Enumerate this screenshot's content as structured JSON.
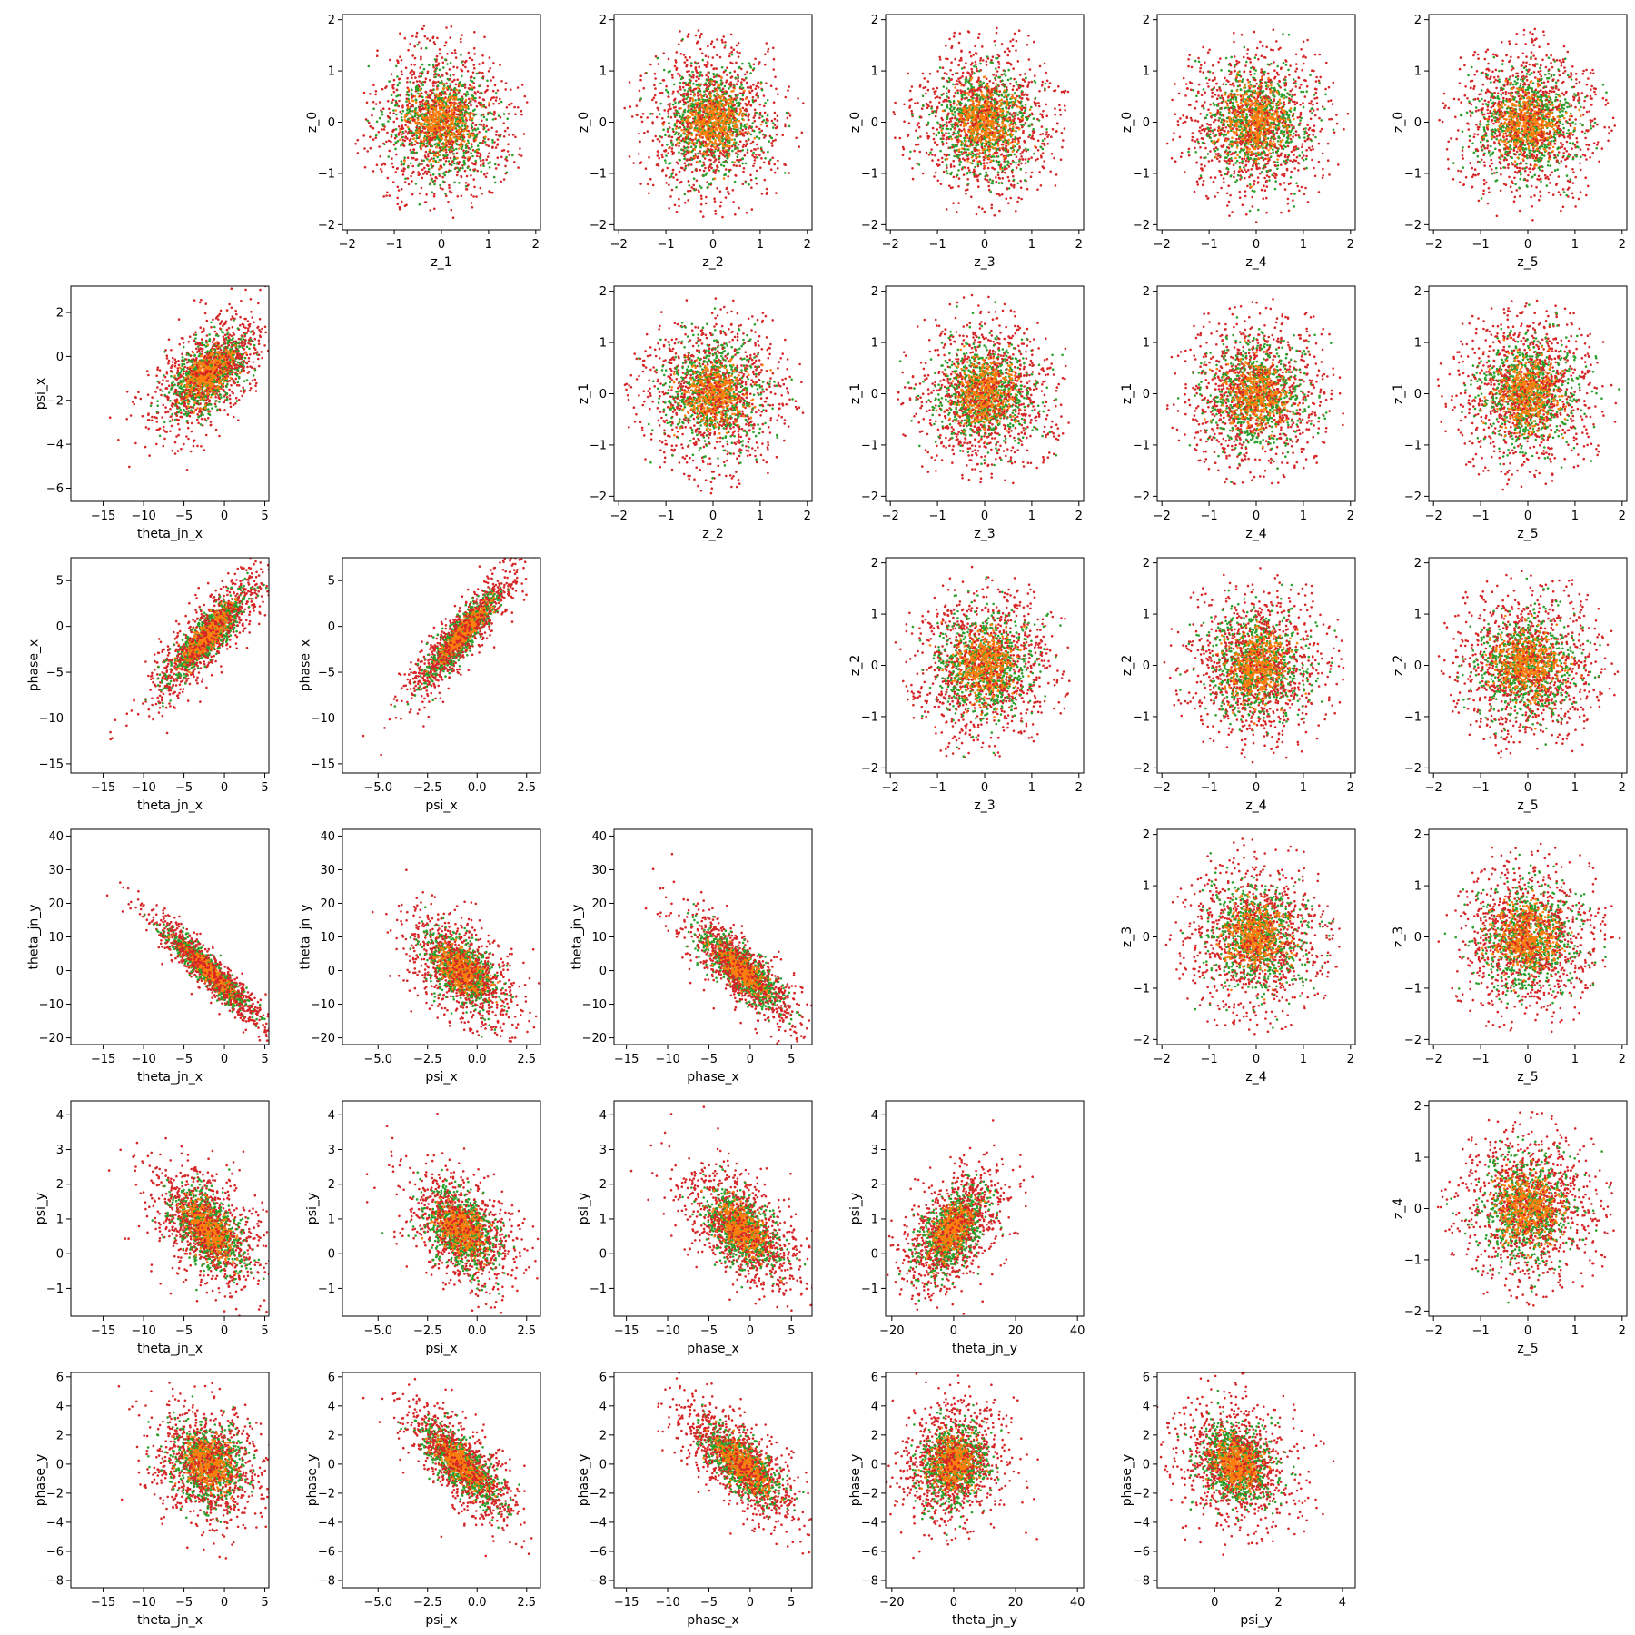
{
  "figure": {
    "background": "#ffffff",
    "colors": {
      "red": "#d62728",
      "green": "#2ca02c",
      "orange": "#ff7f0e"
    }
  },
  "chart_data": [
    {
      "type": "scatter",
      "row": 0,
      "col": 1,
      "xlabel": "z_1",
      "ylabel": "z_0",
      "xlim": [
        -2.1,
        2.1
      ],
      "ylim": [
        -2.1,
        2.1
      ],
      "xticks": [
        -2,
        -1,
        0,
        1,
        2
      ],
      "yticks": [
        -2,
        -1,
        0,
        1,
        2
      ],
      "dist": "iso",
      "params": {
        "sx": 0.85,
        "sy": 0.85
      }
    },
    {
      "type": "scatter",
      "row": 0,
      "col": 2,
      "xlabel": "z_2",
      "ylabel": "z_0",
      "xlim": [
        -2.1,
        2.1
      ],
      "ylim": [
        -2.1,
        2.1
      ],
      "xticks": [
        -2,
        -1,
        0,
        1,
        2
      ],
      "yticks": [
        -2,
        -1,
        0,
        1,
        2
      ],
      "dist": "iso",
      "params": {
        "sx": 0.85,
        "sy": 0.85
      }
    },
    {
      "type": "scatter",
      "row": 0,
      "col": 3,
      "xlabel": "z_3",
      "ylabel": "z_0",
      "xlim": [
        -2.1,
        2.1
      ],
      "ylim": [
        -2.1,
        2.1
      ],
      "xticks": [
        -2,
        -1,
        0,
        1,
        2
      ],
      "yticks": [
        -2,
        -1,
        0,
        1,
        2
      ],
      "dist": "iso",
      "params": {
        "sx": 0.85,
        "sy": 0.85
      }
    },
    {
      "type": "scatter",
      "row": 0,
      "col": 4,
      "xlabel": "z_4",
      "ylabel": "z_0",
      "xlim": [
        -2.1,
        2.1
      ],
      "ylim": [
        -2.1,
        2.1
      ],
      "xticks": [
        -2,
        -1,
        0,
        1,
        2
      ],
      "yticks": [
        -2,
        -1,
        0,
        1,
        2
      ],
      "dist": "iso",
      "params": {
        "sx": 0.85,
        "sy": 0.85
      }
    },
    {
      "type": "scatter",
      "row": 0,
      "col": 5,
      "xlabel": "z_5",
      "ylabel": "z_0",
      "xlim": [
        -2.1,
        2.1
      ],
      "ylim": [
        -2.1,
        2.1
      ],
      "xticks": [
        -2,
        -1,
        0,
        1,
        2
      ],
      "yticks": [
        -2,
        -1,
        0,
        1,
        2
      ],
      "dist": "iso",
      "params": {
        "sx": 0.85,
        "sy": 0.85
      }
    },
    {
      "type": "scatter",
      "row": 1,
      "col": 0,
      "xlabel": "theta_jn_x",
      "ylabel": "psi_x",
      "xlim": [
        -19,
        5.5
      ],
      "ylim": [
        -6.6,
        3.2
      ],
      "xticks": [
        -15,
        -10,
        -5,
        0,
        5
      ],
      "yticks": [
        -6,
        -4,
        -2,
        0,
        2
      ],
      "dist": "corr",
      "params": {
        "mx": -2,
        "my": -0.8,
        "sx": 3.8,
        "sy": 1.5,
        "r": 0.55
      }
    },
    {
      "type": "scatter",
      "row": 1,
      "col": 2,
      "xlabel": "z_2",
      "ylabel": "z_1",
      "xlim": [
        -2.1,
        2.1
      ],
      "ylim": [
        -2.1,
        2.1
      ],
      "xticks": [
        -2,
        -1,
        0,
        1,
        2
      ],
      "yticks": [
        -2,
        -1,
        0,
        1,
        2
      ],
      "dist": "iso",
      "params": {
        "sx": 0.85,
        "sy": 0.85
      }
    },
    {
      "type": "scatter",
      "row": 1,
      "col": 3,
      "xlabel": "z_3",
      "ylabel": "z_1",
      "xlim": [
        -2.1,
        2.1
      ],
      "ylim": [
        -2.1,
        2.1
      ],
      "xticks": [
        -2,
        -1,
        0,
        1,
        2
      ],
      "yticks": [
        -2,
        -1,
        0,
        1,
        2
      ],
      "dist": "iso",
      "params": {
        "sx": 0.85,
        "sy": 0.85
      }
    },
    {
      "type": "scatter",
      "row": 1,
      "col": 4,
      "xlabel": "z_4",
      "ylabel": "z_1",
      "xlim": [
        -2.1,
        2.1
      ],
      "ylim": [
        -2.1,
        2.1
      ],
      "xticks": [
        -2,
        -1,
        0,
        1,
        2
      ],
      "yticks": [
        -2,
        -1,
        0,
        1,
        2
      ],
      "dist": "iso",
      "params": {
        "sx": 0.85,
        "sy": 0.85
      }
    },
    {
      "type": "scatter",
      "row": 1,
      "col": 5,
      "xlabel": "z_5",
      "ylabel": "z_1",
      "xlim": [
        -2.1,
        2.1
      ],
      "ylim": [
        -2.1,
        2.1
      ],
      "xticks": [
        -2,
        -1,
        0,
        1,
        2
      ],
      "yticks": [
        -2,
        -1,
        0,
        1,
        2
      ],
      "dist": "iso",
      "params": {
        "sx": 0.85,
        "sy": 0.85
      }
    },
    {
      "type": "scatter",
      "row": 2,
      "col": 0,
      "xlabel": "theta_jn_x",
      "ylabel": "phase_x",
      "xlim": [
        -19,
        5.5
      ],
      "ylim": [
        -16,
        7.5
      ],
      "xticks": [
        -15,
        -10,
        -5,
        0,
        5
      ],
      "yticks": [
        -15,
        -10,
        -5,
        0,
        5
      ],
      "dist": "corr",
      "params": {
        "mx": -2,
        "my": -1,
        "sx": 3.8,
        "sy": 3.8,
        "r": 0.85
      }
    },
    {
      "type": "scatter",
      "row": 2,
      "col": 1,
      "xlabel": "psi_x",
      "ylabel": "phase_x",
      "xlim": [
        -6.8,
        3.2
      ],
      "ylim": [
        -16,
        7.5
      ],
      "xticks": [
        -5.0,
        -2.5,
        0.0,
        2.5
      ],
      "yticks": [
        -15,
        -10,
        -5,
        0,
        5
      ],
      "dist": "corr",
      "params": {
        "mx": -0.8,
        "my": -1,
        "sx": 1.5,
        "sy": 3.8,
        "r": 0.9
      }
    },
    {
      "type": "scatter",
      "row": 2,
      "col": 3,
      "xlabel": "z_3",
      "ylabel": "z_2",
      "xlim": [
        -2.1,
        2.1
      ],
      "ylim": [
        -2.1,
        2.1
      ],
      "xticks": [
        -2,
        -1,
        0,
        1,
        2
      ],
      "yticks": [
        -2,
        -1,
        0,
        1,
        2
      ],
      "dist": "iso",
      "params": {
        "sx": 0.85,
        "sy": 0.85
      }
    },
    {
      "type": "scatter",
      "row": 2,
      "col": 4,
      "xlabel": "z_4",
      "ylabel": "z_2",
      "xlim": [
        -2.1,
        2.1
      ],
      "ylim": [
        -2.1,
        2.1
      ],
      "xticks": [
        -2,
        -1,
        0,
        1,
        2
      ],
      "yticks": [
        -2,
        -1,
        0,
        1,
        2
      ],
      "dist": "iso",
      "params": {
        "sx": 0.85,
        "sy": 0.85
      }
    },
    {
      "type": "scatter",
      "row": 2,
      "col": 5,
      "xlabel": "z_5",
      "ylabel": "z_2",
      "xlim": [
        -2.1,
        2.1
      ],
      "ylim": [
        -2.1,
        2.1
      ],
      "xticks": [
        -2,
        -1,
        0,
        1,
        2
      ],
      "yticks": [
        -2,
        -1,
        0,
        1,
        2
      ],
      "dist": "iso",
      "params": {
        "sx": 0.85,
        "sy": 0.85
      }
    },
    {
      "type": "scatter",
      "row": 3,
      "col": 0,
      "xlabel": "theta_jn_x",
      "ylabel": "theta_jn_y",
      "xlim": [
        -19,
        5.5
      ],
      "ylim": [
        -22,
        42
      ],
      "xticks": [
        -15,
        -10,
        -5,
        0,
        5
      ],
      "yticks": [
        -20,
        -10,
        0,
        10,
        20,
        30,
        40
      ],
      "dist": "corr",
      "params": {
        "mx": -2,
        "my": 0,
        "sx": 3.8,
        "sy": 9,
        "r": -0.93
      }
    },
    {
      "type": "scatter",
      "row": 3,
      "col": 1,
      "xlabel": "psi_x",
      "ylabel": "theta_jn_y",
      "xlim": [
        -6.8,
        3.2
      ],
      "ylim": [
        -22,
        42
      ],
      "xticks": [
        -5.0,
        -2.5,
        0.0,
        2.5
      ],
      "yticks": [
        -20,
        -10,
        0,
        10,
        20,
        30,
        40
      ],
      "dist": "corr",
      "params": {
        "mx": -0.8,
        "my": 0,
        "sx": 1.5,
        "sy": 9,
        "r": -0.55
      }
    },
    {
      "type": "scatter",
      "row": 3,
      "col": 2,
      "xlabel": "phase_x",
      "ylabel": "theta_jn_y",
      "xlim": [
        -16.5,
        7.5
      ],
      "ylim": [
        -22,
        42
      ],
      "xticks": [
        -15,
        -10,
        -5,
        0,
        5
      ],
      "yticks": [
        -20,
        -10,
        0,
        10,
        20,
        30,
        40
      ],
      "dist": "corr",
      "params": {
        "mx": -1,
        "my": 0,
        "sx": 3.8,
        "sy": 9,
        "r": -0.8
      }
    },
    {
      "type": "scatter",
      "row": 3,
      "col": 4,
      "xlabel": "z_4",
      "ylabel": "z_3",
      "xlim": [
        -2.1,
        2.1
      ],
      "ylim": [
        -2.1,
        2.1
      ],
      "xticks": [
        -2,
        -1,
        0,
        1,
        2
      ],
      "yticks": [
        -2,
        -1,
        0,
        1,
        2
      ],
      "dist": "iso",
      "params": {
        "sx": 0.85,
        "sy": 0.85
      }
    },
    {
      "type": "scatter",
      "row": 3,
      "col": 5,
      "xlabel": "z_5",
      "ylabel": "z_3",
      "xlim": [
        -2.1,
        2.1
      ],
      "ylim": [
        -2.1,
        2.1
      ],
      "xticks": [
        -2,
        -1,
        0,
        1,
        2
      ],
      "yticks": [
        -2,
        -1,
        0,
        1,
        2
      ],
      "dist": "iso",
      "params": {
        "sx": 0.85,
        "sy": 0.85
      }
    },
    {
      "type": "scatter",
      "row": 4,
      "col": 0,
      "xlabel": "theta_jn_x",
      "ylabel": "psi_y",
      "xlim": [
        -19,
        5.5
      ],
      "ylim": [
        -1.8,
        4.4
      ],
      "xticks": [
        -15,
        -10,
        -5,
        0,
        5
      ],
      "yticks": [
        -1,
        0,
        1,
        2,
        3,
        4
      ],
      "dist": "corr",
      "params": {
        "mx": -2,
        "my": 0.7,
        "sx": 3.8,
        "sy": 0.95,
        "r": -0.5
      }
    },
    {
      "type": "scatter",
      "row": 4,
      "col": 1,
      "xlabel": "psi_x",
      "ylabel": "psi_y",
      "xlim": [
        -6.8,
        3.2
      ],
      "ylim": [
        -1.8,
        4.4
      ],
      "xticks": [
        -5.0,
        -2.5,
        0.0,
        2.5
      ],
      "yticks": [
        -1,
        0,
        1,
        2,
        3,
        4
      ],
      "dist": "corr",
      "params": {
        "mx": -0.8,
        "my": 0.7,
        "sx": 1.5,
        "sy": 0.95,
        "r": -0.4
      }
    },
    {
      "type": "scatter",
      "row": 4,
      "col": 2,
      "xlabel": "phase_x",
      "ylabel": "psi_y",
      "xlim": [
        -16.5,
        7.5
      ],
      "ylim": [
        -1.8,
        4.4
      ],
      "xticks": [
        -15,
        -10,
        -5,
        0,
        5
      ],
      "yticks": [
        -1,
        0,
        1,
        2,
        3,
        4
      ],
      "dist": "corr",
      "params": {
        "mx": -1,
        "my": 0.7,
        "sx": 3.8,
        "sy": 0.95,
        "r": -0.5
      }
    },
    {
      "type": "scatter",
      "row": 4,
      "col": 3,
      "xlabel": "theta_jn_y",
      "ylabel": "psi_y",
      "xlim": [
        -22,
        42
      ],
      "ylim": [
        -1.8,
        4.4
      ],
      "xticks": [
        -20,
        0,
        20,
        40
      ],
      "yticks": [
        -1,
        0,
        1,
        2,
        3,
        4
      ],
      "dist": "corr",
      "params": {
        "mx": 0,
        "my": 0.7,
        "sx": 9,
        "sy": 0.95,
        "r": 0.5
      }
    },
    {
      "type": "scatter",
      "row": 4,
      "col": 5,
      "xlabel": "z_5",
      "ylabel": "z_4",
      "xlim": [
        -2.1,
        2.1
      ],
      "ylim": [
        -2.1,
        2.1
      ],
      "xticks": [
        -2,
        -1,
        0,
        1,
        2
      ],
      "yticks": [
        -2,
        -1,
        0,
        1,
        2
      ],
      "dist": "iso",
      "params": {
        "sx": 0.85,
        "sy": 0.85
      }
    },
    {
      "type": "scatter",
      "row": 5,
      "col": 0,
      "xlabel": "theta_jn_x",
      "ylabel": "phase_y",
      "xlim": [
        -19,
        5.5
      ],
      "ylim": [
        -8.5,
        6.3
      ],
      "xticks": [
        -15,
        -10,
        -5,
        0,
        5
      ],
      "yticks": [
        -8,
        -6,
        -4,
        -2,
        0,
        2,
        4,
        6
      ],
      "dist": "corr",
      "params": {
        "mx": -2,
        "my": 0,
        "sx": 3.8,
        "sy": 2.2,
        "r": -0.15
      }
    },
    {
      "type": "scatter",
      "row": 5,
      "col": 1,
      "xlabel": "psi_x",
      "ylabel": "phase_y",
      "xlim": [
        -6.8,
        3.2
      ],
      "ylim": [
        -8.5,
        6.3
      ],
      "xticks": [
        -5.0,
        -2.5,
        0.0,
        2.5
      ],
      "yticks": [
        -8,
        -6,
        -4,
        -2,
        0,
        2,
        4,
        6
      ],
      "dist": "corr",
      "params": {
        "mx": -0.8,
        "my": 0,
        "sx": 1.5,
        "sy": 2.2,
        "r": -0.75
      }
    },
    {
      "type": "scatter",
      "row": 5,
      "col": 2,
      "xlabel": "phase_x",
      "ylabel": "phase_y",
      "xlim": [
        -16.5,
        7.5
      ],
      "ylim": [
        -8.5,
        6.3
      ],
      "xticks": [
        -15,
        -10,
        -5,
        0,
        5
      ],
      "yticks": [
        -8,
        -6,
        -4,
        -2,
        0,
        2,
        4,
        6
      ],
      "dist": "corr",
      "params": {
        "mx": -1,
        "my": 0,
        "sx": 3.8,
        "sy": 2.2,
        "r": -0.7
      }
    },
    {
      "type": "scatter",
      "row": 5,
      "col": 3,
      "xlabel": "theta_jn_y",
      "ylabel": "phase_y",
      "xlim": [
        -22,
        42
      ],
      "ylim": [
        -8.5,
        6.3
      ],
      "xticks": [
        -20,
        0,
        20,
        40
      ],
      "yticks": [
        -8,
        -6,
        -4,
        -2,
        0,
        2,
        4,
        6
      ],
      "dist": "corr",
      "params": {
        "mx": 0,
        "my": 0,
        "sx": 9,
        "sy": 2.2,
        "r": 0.1
      }
    },
    {
      "type": "scatter",
      "row": 5,
      "col": 4,
      "xlabel": "psi_y",
      "ylabel": "phase_y",
      "xlim": [
        -1.8,
        4.4
      ],
      "ylim": [
        -8.5,
        6.3
      ],
      "xticks": [
        0,
        2,
        4
      ],
      "yticks": [
        -8,
        -6,
        -4,
        -2,
        0,
        2,
        4,
        6
      ],
      "dist": "corr",
      "params": {
        "mx": 0.7,
        "my": 0,
        "sx": 0.95,
        "sy": 2.2,
        "r": -0.2
      }
    }
  ]
}
